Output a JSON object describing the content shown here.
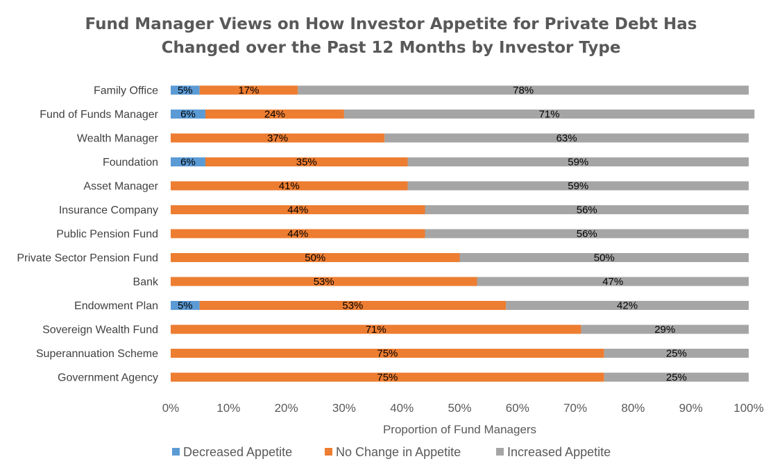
{
  "chart_data": {
    "type": "bar",
    "orientation": "horizontal",
    "stacked": true,
    "title_lines": [
      "Fund Manager Views on How Investor Appetite for Private Debt Has",
      "Changed over the Past 12 Months by Investor Type"
    ],
    "xlabel": "Proportion of Fund Managers",
    "ylabel": "",
    "xlim": [
      0,
      100
    ],
    "x_ticks": [
      "0%",
      "10%",
      "20%",
      "30%",
      "40%",
      "50%",
      "60%",
      "70%",
      "80%",
      "90%",
      "100%"
    ],
    "categories": [
      "Family Office",
      "Fund of Funds Manager",
      "Wealth Manager",
      "Foundation",
      "Asset Manager",
      "Insurance Company",
      "Public Pension Fund",
      "Private Sector Pension Fund",
      "Bank",
      "Endowment Plan",
      "Sovereign Wealth Fund",
      "Superannuation Scheme",
      "Government Agency"
    ],
    "series": [
      {
        "name": "Decreased Appetite",
        "color": "#5B9BD5",
        "values": [
          5,
          6,
          0,
          6,
          0,
          0,
          0,
          0,
          0,
          5,
          0,
          0,
          0
        ]
      },
      {
        "name": "No Change in Appetite",
        "color": "#ED7D31",
        "values": [
          17,
          24,
          37,
          35,
          41,
          44,
          44,
          50,
          53,
          53,
          71,
          75,
          75
        ]
      },
      {
        "name": "Increased Appetite",
        "color": "#A5A5A5",
        "values": [
          78,
          71,
          63,
          59,
          59,
          56,
          56,
          50,
          47,
          42,
          29,
          25,
          25
        ]
      }
    ],
    "data_labels_shown": true,
    "grid": false,
    "legend_position": "bottom"
  }
}
